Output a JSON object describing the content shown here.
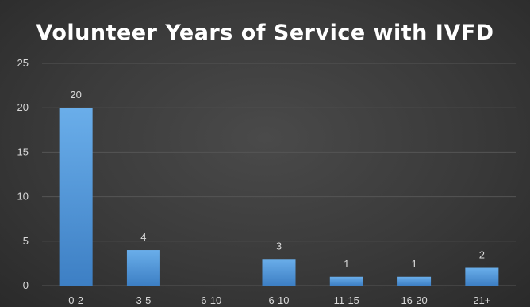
{
  "chart_data": {
    "type": "bar",
    "title": "Volunteer Years of Service with IVFD",
    "categories": [
      "0-2",
      "3-5",
      "6-10",
      "6-10",
      "11-15",
      "16-20",
      "21+"
    ],
    "values": [
      20,
      4,
      0,
      3,
      1,
      1,
      2
    ],
    "data_labels": [
      "20",
      "4",
      "",
      "3",
      "1",
      "1",
      "2"
    ],
    "y_ticks": [
      0,
      5,
      10,
      15,
      20,
      25
    ],
    "ylim": [
      0,
      25
    ],
    "xlabel": "",
    "ylabel": "",
    "grid": true,
    "legend": "none",
    "colors": {
      "bar_top": "#6aaeea",
      "bar_bottom": "#3d7fc4",
      "grid": "#555555",
      "axis_text": "#d9d9d9",
      "title": "#ffffff"
    }
  }
}
